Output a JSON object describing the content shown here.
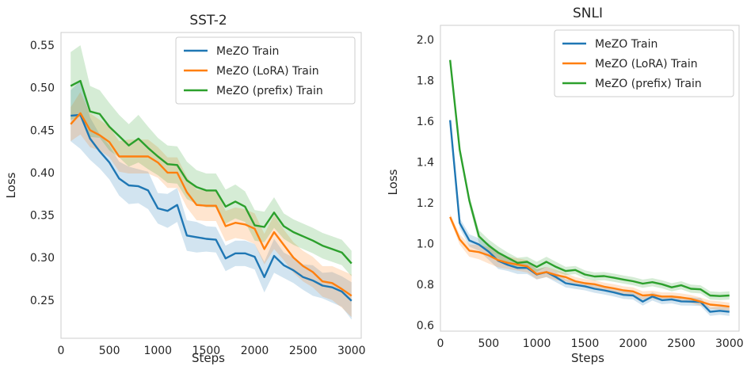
{
  "chart_data": [
    {
      "type": "line",
      "title": "SST-2",
      "xlabel": "Steps",
      "ylabel": "Loss",
      "xlim": [
        0,
        3100
      ],
      "ylim": [
        0.205,
        0.565
      ],
      "xticks": [
        0,
        500,
        1000,
        1500,
        2000,
        2500,
        3000
      ],
      "yticks": [
        0.25,
        0.3,
        0.35,
        0.4,
        0.45,
        0.5,
        0.55
      ],
      "ytick_labels": [
        "0.25",
        "0.30",
        "0.35",
        "0.40",
        "0.45",
        "0.50",
        "0.55"
      ],
      "grid": false,
      "legend_position": "top-right",
      "x": [
        100,
        200,
        300,
        400,
        500,
        600,
        700,
        800,
        900,
        1000,
        1100,
        1200,
        1300,
        1400,
        1500,
        1600,
        1700,
        1800,
        1900,
        2000,
        2100,
        2200,
        2300,
        2400,
        2500,
        2600,
        2700,
        2800,
        2900,
        3000
      ],
      "series": [
        {
          "name": "MeZO Train",
          "color": "#1f77b4",
          "values": [
            0.467,
            0.468,
            0.44,
            0.425,
            0.412,
            0.393,
            0.385,
            0.384,
            0.379,
            0.358,
            0.355,
            0.362,
            0.326,
            0.324,
            0.322,
            0.321,
            0.299,
            0.305,
            0.305,
            0.301,
            0.277,
            0.302,
            0.291,
            0.285,
            0.277,
            0.273,
            0.267,
            0.265,
            0.26,
            0.249
          ],
          "band": [
            0.03,
            0.04,
            0.025,
            0.02,
            0.02,
            0.02,
            0.022,
            0.02,
            0.022,
            0.018,
            0.02,
            0.02,
            0.018,
            0.018,
            0.015,
            0.015,
            0.015,
            0.015,
            0.015,
            0.015,
            0.018,
            0.02,
            0.015,
            0.015,
            0.015,
            0.018,
            0.015,
            0.018,
            0.018,
            0.022
          ]
        },
        {
          "name": "MeZO (LoRA) Train",
          "color": "#ff7f0e",
          "values": [
            0.457,
            0.47,
            0.45,
            0.444,
            0.436,
            0.419,
            0.419,
            0.419,
            0.419,
            0.412,
            0.4,
            0.4,
            0.377,
            0.362,
            0.361,
            0.361,
            0.337,
            0.341,
            0.339,
            0.334,
            0.31,
            0.33,
            0.315,
            0.3,
            0.29,
            0.283,
            0.272,
            0.27,
            0.263,
            0.255
          ],
          "band": [
            0.02,
            0.025,
            0.02,
            0.018,
            0.018,
            0.018,
            0.02,
            0.02,
            0.02,
            0.018,
            0.018,
            0.018,
            0.018,
            0.018,
            0.018,
            0.018,
            0.018,
            0.018,
            0.018,
            0.018,
            0.018,
            0.02,
            0.018,
            0.018,
            0.018,
            0.018,
            0.018,
            0.02,
            0.022,
            0.025
          ]
        },
        {
          "name": "MeZO (prefix) Train",
          "color": "#2ca02c",
          "values": [
            0.502,
            0.508,
            0.472,
            0.469,
            0.454,
            0.443,
            0.432,
            0.44,
            0.429,
            0.419,
            0.41,
            0.409,
            0.391,
            0.383,
            0.379,
            0.379,
            0.36,
            0.366,
            0.36,
            0.338,
            0.336,
            0.353,
            0.337,
            0.33,
            0.325,
            0.32,
            0.314,
            0.31,
            0.306,
            0.293
          ],
          "band": [
            0.04,
            0.042,
            0.03,
            0.028,
            0.028,
            0.025,
            0.025,
            0.028,
            0.025,
            0.022,
            0.022,
            0.022,
            0.022,
            0.02,
            0.02,
            0.02,
            0.02,
            0.02,
            0.018,
            0.018,
            0.018,
            0.018,
            0.015,
            0.015,
            0.015,
            0.015,
            0.015,
            0.015,
            0.015,
            0.015
          ]
        }
      ]
    },
    {
      "type": "line",
      "title": "SNLI",
      "xlabel": "Steps",
      "ylabel": "Loss",
      "xlim": [
        0,
        3100
      ],
      "ylim": [
        0.57,
        2.07
      ],
      "xticks": [
        0,
        500,
        1000,
        1500,
        2000,
        2500,
        3000
      ],
      "yticks": [
        0.6,
        0.8,
        1.0,
        1.2,
        1.4,
        1.6,
        1.8,
        2.0
      ],
      "ytick_labels": [
        "0.6",
        "0.8",
        "1.0",
        "1.2",
        "1.4",
        "1.6",
        "1.8",
        "2.0"
      ],
      "grid": false,
      "legend_position": "top-right",
      "x": [
        100,
        200,
        300,
        400,
        500,
        600,
        700,
        800,
        900,
        1000,
        1100,
        1200,
        1300,
        1400,
        1500,
        1600,
        1700,
        1800,
        1900,
        2000,
        2100,
        2200,
        2300,
        2400,
        2500,
        2600,
        2700,
        2800,
        2900,
        3000
      ],
      "series": [
        {
          "name": "MeZO Train",
          "color": "#1f77b4",
          "values": [
            1.605,
            1.1,
            1.015,
            0.995,
            0.96,
            0.915,
            0.895,
            0.88,
            0.88,
            0.848,
            0.86,
            0.835,
            0.805,
            0.797,
            0.79,
            0.778,
            0.77,
            0.76,
            0.748,
            0.745,
            0.715,
            0.74,
            0.722,
            0.726,
            0.716,
            0.715,
            0.713,
            0.665,
            0.67,
            0.665
          ],
          "band": [
            0.015,
            0.025,
            0.03,
            0.03,
            0.04,
            0.04,
            0.03,
            0.03,
            0.03,
            0.025,
            0.025,
            0.025,
            0.02,
            0.02,
            0.02,
            0.02,
            0.02,
            0.02,
            0.02,
            0.02,
            0.02,
            0.02,
            0.02,
            0.02,
            0.02,
            0.02,
            0.02,
            0.02,
            0.02,
            0.02
          ]
        },
        {
          "name": "MeZO (LoRA) Train",
          "color": "#ff7f0e",
          "values": [
            1.13,
            1.02,
            0.965,
            0.958,
            0.942,
            0.918,
            0.905,
            0.897,
            0.888,
            0.85,
            0.86,
            0.845,
            0.835,
            0.815,
            0.805,
            0.8,
            0.788,
            0.78,
            0.77,
            0.765,
            0.745,
            0.748,
            0.74,
            0.74,
            0.735,
            0.728,
            0.715,
            0.7,
            0.696,
            0.69
          ],
          "band": [
            0.015,
            0.025,
            0.03,
            0.035,
            0.04,
            0.035,
            0.03,
            0.03,
            0.03,
            0.025,
            0.025,
            0.025,
            0.02,
            0.02,
            0.02,
            0.02,
            0.02,
            0.02,
            0.02,
            0.02,
            0.02,
            0.02,
            0.02,
            0.02,
            0.02,
            0.02,
            0.02,
            0.02,
            0.02,
            0.02
          ]
        },
        {
          "name": "MeZO (prefix) Train",
          "color": "#2ca02c",
          "values": [
            1.9,
            1.46,
            1.21,
            1.035,
            0.99,
            0.955,
            0.93,
            0.905,
            0.91,
            0.885,
            0.91,
            0.885,
            0.865,
            0.87,
            0.848,
            0.838,
            0.84,
            0.832,
            0.823,
            0.815,
            0.803,
            0.81,
            0.8,
            0.785,
            0.795,
            0.778,
            0.775,
            0.745,
            0.742,
            0.745
          ],
          "band": [
            0.01,
            0.02,
            0.025,
            0.03,
            0.03,
            0.03,
            0.025,
            0.025,
            0.025,
            0.025,
            0.025,
            0.025,
            0.02,
            0.02,
            0.02,
            0.02,
            0.02,
            0.02,
            0.02,
            0.02,
            0.02,
            0.02,
            0.02,
            0.02,
            0.02,
            0.02,
            0.02,
            0.02,
            0.02,
            0.02
          ]
        }
      ]
    }
  ]
}
